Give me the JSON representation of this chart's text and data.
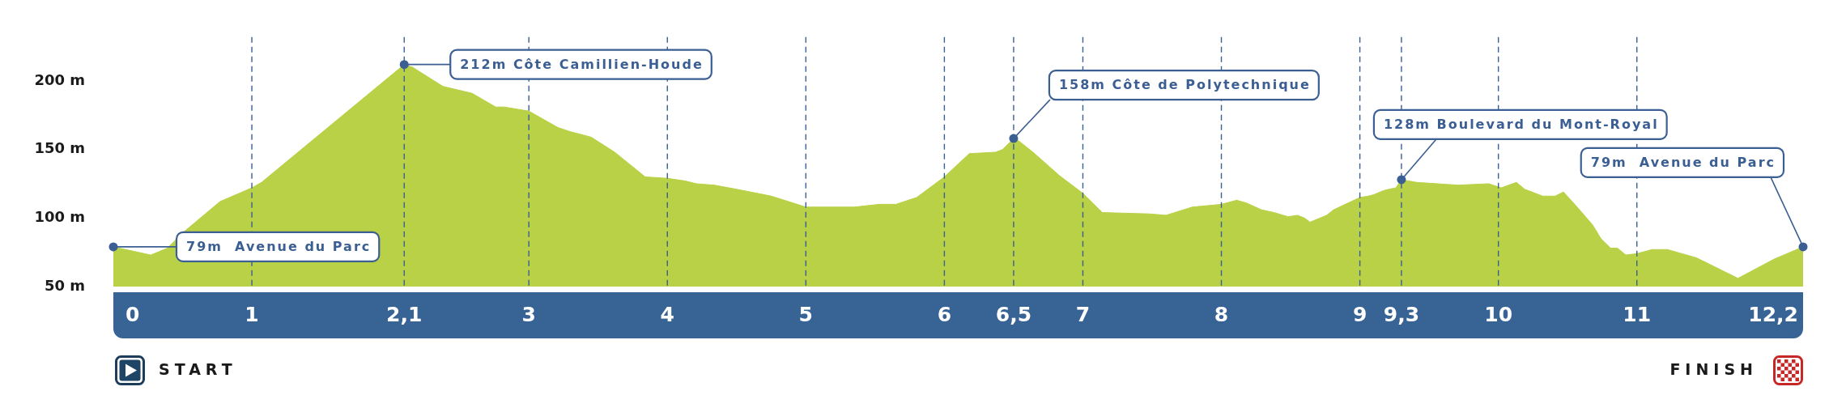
{
  "chart_data": {
    "type": "area",
    "x": [
      0,
      0.27,
      0.39,
      0.51,
      0.77,
      1,
      1.07,
      2.1,
      2.16,
      2.38,
      2.59,
      2.76,
      2.82,
      3,
      3.21,
      3.3,
      3.45,
      3.62,
      3.84,
      4,
      4.13,
      4.21,
      4.34,
      4.5,
      4.75,
      5,
      5.15,
      5.35,
      5.53,
      5.65,
      5.8,
      6,
      6.18,
      6.37,
      6.42,
      6.5,
      6.54,
      6.64,
      6.83,
      7,
      7.14,
      7.48,
      7.6,
      7.79,
      8,
      8.11,
      8.18,
      8.29,
      8.38,
      8.48,
      8.55,
      8.6,
      8.64,
      8.76,
      8.81,
      9,
      9.06,
      9.1,
      9.17,
      9.21,
      9.26,
      9.3,
      9.41,
      9.71,
      9.93,
      10.02,
      10.13,
      10.19,
      10.32,
      10.41,
      10.47,
      10.56,
      10.68,
      10.74,
      10.81,
      10.86,
      10.92,
      11,
      11.11,
      11.22,
      11.43,
      11.73,
      11.99,
      12.2
    ],
    "values": [
      79,
      73,
      78,
      90,
      112,
      122,
      126,
      212,
      210,
      196,
      191,
      181,
      181,
      178,
      166,
      163,
      159,
      148,
      130,
      129,
      127,
      125,
      124,
      121,
      116,
      108,
      108,
      108,
      110,
      110,
      115,
      130,
      147,
      148,
      150,
      158,
      156,
      148,
      131,
      118,
      104,
      103,
      102,
      108,
      110,
      113,
      111,
      106,
      104,
      101,
      102,
      100,
      97,
      102,
      106,
      115,
      116,
      117,
      120,
      121,
      122,
      128,
      126,
      124,
      125,
      122,
      126,
      121,
      116,
      116,
      119,
      109,
      95,
      85,
      78,
      78,
      73,
      74,
      77,
      77,
      71,
      56,
      70,
      79
    ],
    "color": "#b9d146",
    "xlim": [
      0,
      12.2
    ],
    "xticks": [
      0,
      1,
      {
        "value": 2.1,
        "label": "2,1"
      },
      3,
      4,
      5,
      6,
      {
        "value": 6.5,
        "label": "6,5"
      },
      7,
      8,
      9,
      {
        "value": 9.3,
        "label": "9,3"
      },
      10,
      11,
      {
        "value": 12.2,
        "label": "12,2"
      }
    ],
    "ylim": [
      50,
      232
    ],
    "yticks": [
      {
        "value": 50,
        "label": "50 m"
      },
      {
        "value": 100,
        "label": "100 m"
      },
      {
        "value": 150,
        "label": "150 m"
      },
      {
        "value": 200,
        "label": "200 m"
      }
    ],
    "grid": "x",
    "annotations": [
      {
        "text": "79m  Avenue du Parc",
        "x": 0,
        "y": 79
      },
      {
        "text": "212m Côte Camillien-Houde",
        "x": 2.1,
        "y": 212
      },
      {
        "text": "158m Côte de Polytechnique",
        "x": 6.5,
        "y": 158
      },
      {
        "text": "128m Boulevard du Mont-Royal",
        "x": 9.3,
        "y": 128
      },
      {
        "text": "79m  Avenue du Parc",
        "x": 12.2,
        "y": 79
      },
      "START",
      "FINISH"
    ]
  }
}
